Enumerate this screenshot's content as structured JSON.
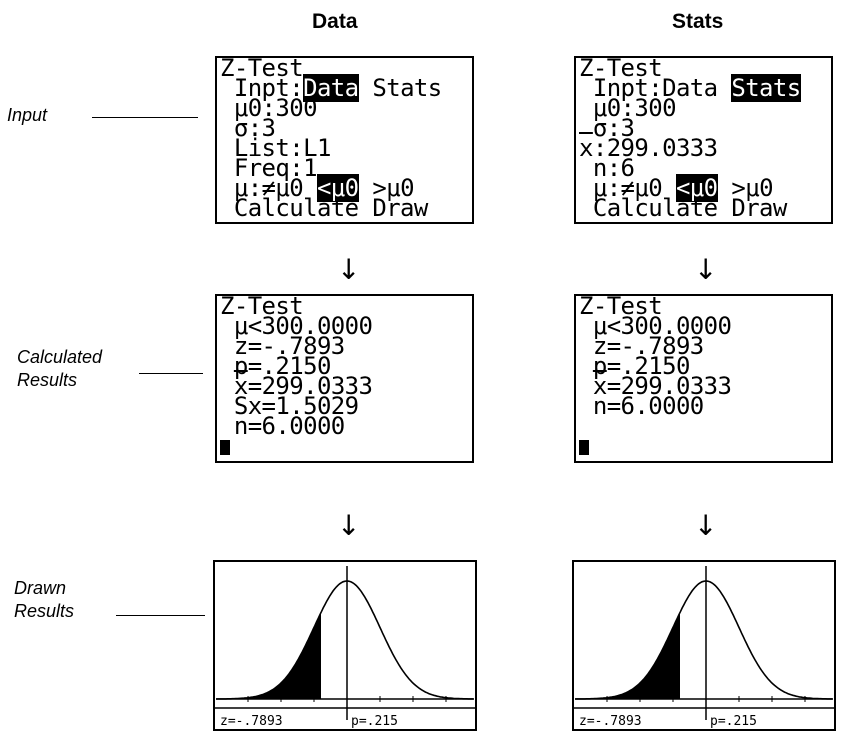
{
  "columns": {
    "data": "Data",
    "stats": "Stats"
  },
  "rows": {
    "input": "Input",
    "calculated_line1": "Calculated",
    "calculated_line2": "Results",
    "drawn_line1": "Drawn",
    "drawn_line2": "Results"
  },
  "arrow_glyph": "↓",
  "data_input": {
    "title": "Z-Test",
    "inpt_prefix": " Inpt:",
    "inpt_selected": "Data",
    "inpt_other": " Stats",
    "mu0": " μ0:300",
    "sigma": " σ:3",
    "list": " List:L1",
    "freq": " Freq:1",
    "alt_prefix": " μ:≠μ0 ",
    "alt_selected": "<μ0",
    "alt_other": " >μ0",
    "calc": " Calculate Draw"
  },
  "stats_input": {
    "title": "Z-Test",
    "inpt_prefix": " Inpt:Data ",
    "inpt_selected": "Stats",
    "mu0": " μ0:300",
    "sigma": " σ:3",
    "xbar_label": "x",
    "xbar_value": ":299.0333",
    "n": " n:6",
    "alt_prefix": " μ:≠μ0 ",
    "alt_selected": "<μ0",
    "alt_other": " >μ0",
    "calc": " Calculate Draw"
  },
  "data_results": {
    "title": "Z-Test",
    "mu": " μ<300.0000",
    "z": " z=-.7893",
    "p": " p=.2150",
    "xbar_label": "x",
    "xbar_value": "=299.0333",
    "sx": " Sx=1.5029",
    "n": " n=6.0000"
  },
  "stats_results": {
    "title": "Z-Test",
    "mu": " μ<300.0000",
    "z": " z=-.7893",
    "p": " p=.2150",
    "xbar_label": "x",
    "xbar_value": "=299.0333",
    "n": " n=6.0000"
  },
  "data_graph": {
    "z_label": "z=-.7893",
    "p_label": "p=.215",
    "z": -0.7893
  },
  "stats_graph": {
    "z_label": "z=-.7893",
    "p_label": "p=.215",
    "z": -0.7893
  }
}
